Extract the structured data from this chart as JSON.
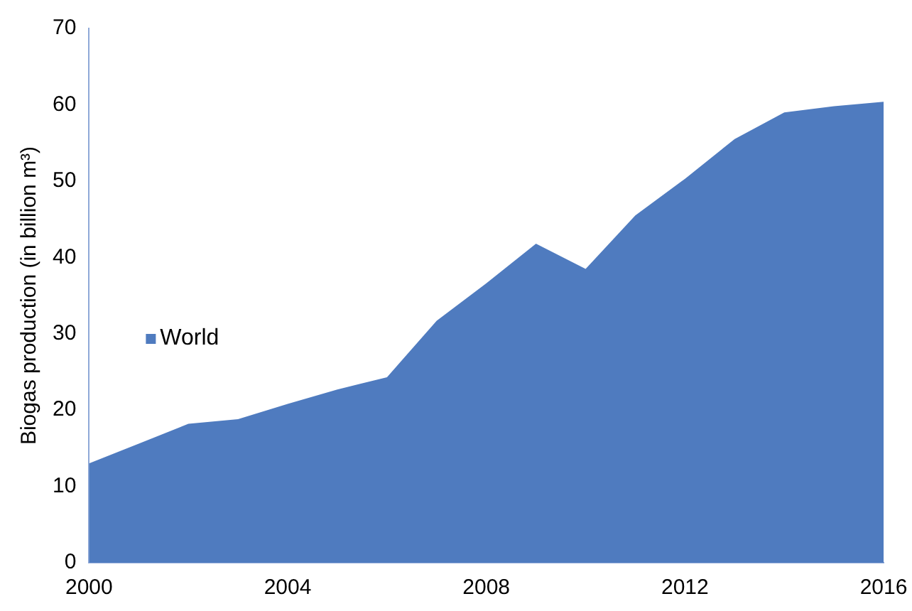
{
  "chart_data": {
    "type": "area",
    "ylabel": "Biogas production (in billion m³)",
    "x": [
      2000,
      2001,
      2002,
      2003,
      2004,
      2005,
      2006,
      2007,
      2008,
      2009,
      2010,
      2011,
      2012,
      2013,
      2014,
      2015,
      2016
    ],
    "series": [
      {
        "name": "World",
        "color": "#4f7bbf",
        "values": [
          13,
          15.6,
          18.2,
          18.8,
          20.8,
          22.7,
          24.3,
          31.7,
          36.6,
          41.8,
          38.5,
          45.5,
          50.3,
          55.5,
          59,
          59.8,
          60.4
        ]
      }
    ],
    "xlim": [
      2000,
      2016
    ],
    "xticks": [
      2000,
      2004,
      2008,
      2012,
      2016
    ],
    "ylim": [
      0,
      70
    ],
    "yticks": [
      0,
      10,
      20,
      30,
      40,
      50,
      60,
      70
    ],
    "grid": false,
    "legend": "left"
  }
}
